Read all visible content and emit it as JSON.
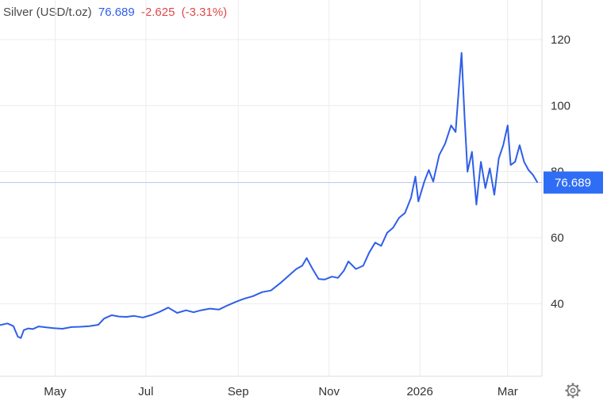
{
  "header": {
    "instrument": "Silver (USD/t.oz)",
    "price": "76.689",
    "change": "-2.625",
    "change_pct": "(-3.31%)"
  },
  "colors": {
    "line": "#2f5fe8",
    "price_text": "#2f5fe8",
    "change_text": "#e04848",
    "label_bg": "#2f6df5",
    "label_text": "#ffffff",
    "grid": "#ececec",
    "current_line": "#b9c9f5"
  },
  "icons": {
    "settings": "gear-icon"
  },
  "chart_data": {
    "type": "line",
    "title": "",
    "xlabel": "",
    "ylabel": "",
    "x_tick_labels": [
      "May",
      "Jul",
      "Sep",
      "Nov",
      "2026",
      "Mar"
    ],
    "x_tick_dates": [
      "2025-05-01",
      "2025-07-01",
      "2025-09-01",
      "2025-11-01",
      "2026-01-01",
      "2026-03-01"
    ],
    "xlim": [
      "2025-03-25",
      "2026-03-24"
    ],
    "ylim": [
      18,
      132
    ],
    "y_ticks": [
      40,
      60,
      80,
      100,
      120
    ],
    "grid": true,
    "legend": "none",
    "current_value": 76.689,
    "current_value_label": "76.689",
    "series": [
      {
        "x": [
          "2025-03-25",
          "2025-03-30",
          "2025-04-03",
          "2025-04-06",
          "2025-04-08",
          "2025-04-10",
          "2025-04-13",
          "2025-04-16",
          "2025-04-20",
          "2025-04-25",
          "2025-04-30",
          "2025-05-06",
          "2025-05-12",
          "2025-05-18",
          "2025-05-24",
          "2025-05-30",
          "2025-06-03",
          "2025-06-08",
          "2025-06-13",
          "2025-06-18",
          "2025-06-23",
          "2025-06-29",
          "2025-07-05",
          "2025-07-10",
          "2025-07-16",
          "2025-07-22",
          "2025-07-28",
          "2025-08-02",
          "2025-08-07",
          "2025-08-13",
          "2025-08-19",
          "2025-08-25",
          "2025-08-30",
          "2025-09-05",
          "2025-09-11",
          "2025-09-17",
          "2025-09-23",
          "2025-09-30",
          "2025-10-05",
          "2025-10-10",
          "2025-10-14",
          "2025-10-17",
          "2025-10-21",
          "2025-10-25",
          "2025-10-29",
          "2025-11-03",
          "2025-11-07",
          "2025-11-11",
          "2025-11-14",
          "2025-11-19",
          "2025-11-24",
          "2025-11-28",
          "2025-12-02",
          "2025-12-06",
          "2025-12-10",
          "2025-12-14",
          "2025-12-18",
          "2025-12-22",
          "2025-12-26",
          "2025-12-29",
          "2025-12-31",
          "2026-01-04",
          "2026-01-07",
          "2026-01-10",
          "2026-01-14",
          "2026-01-18",
          "2026-01-22",
          "2026-01-25",
          "2026-01-27",
          "2026-01-29",
          "2026-01-31",
          "2026-02-02",
          "2026-02-05",
          "2026-02-08",
          "2026-02-11",
          "2026-02-14",
          "2026-02-17",
          "2026-02-20",
          "2026-02-23",
          "2026-02-26",
          "2026-03-01",
          "2026-03-03",
          "2026-03-06",
          "2026-03-09",
          "2026-03-12",
          "2026-03-15",
          "2026-03-18",
          "2026-03-21"
        ],
        "values": [
          33.5,
          34.0,
          33.2,
          30.0,
          29.6,
          32.0,
          32.5,
          32.3,
          33.1,
          32.8,
          32.6,
          32.4,
          32.9,
          33.0,
          33.2,
          33.6,
          35.5,
          36.5,
          36.1,
          36.0,
          36.3,
          35.8,
          36.6,
          37.5,
          38.8,
          37.2,
          38.0,
          37.4,
          38.0,
          38.5,
          38.2,
          39.5,
          40.5,
          41.5,
          42.3,
          43.5,
          44.0,
          46.5,
          48.5,
          50.5,
          51.5,
          53.8,
          50.5,
          47.5,
          47.3,
          48.2,
          47.8,
          50.0,
          52.8,
          50.5,
          51.5,
          55.5,
          58.5,
          57.5,
          61.5,
          63.0,
          66.0,
          67.5,
          72.0,
          78.5,
          71.0,
          77.0,
          80.5,
          77.0,
          85.0,
          88.5,
          94.0,
          92.0,
          104.0,
          116.0,
          97.0,
          80.0,
          86.0,
          70.0,
          83.0,
          75.0,
          81.0,
          73.0,
          84.0,
          88.0,
          94.0,
          82.0,
          83.0,
          88.0,
          83.0,
          80.5,
          79.0,
          76.689
        ]
      }
    ]
  }
}
